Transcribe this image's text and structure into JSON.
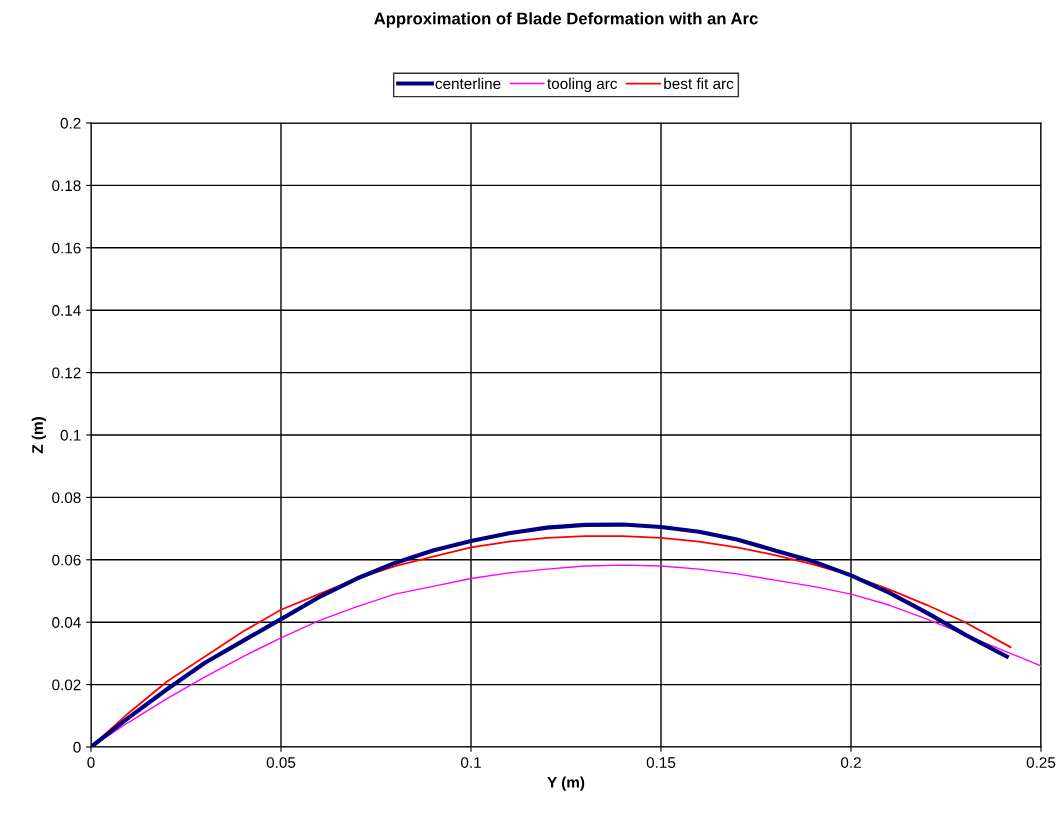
{
  "chart_data": {
    "type": "line",
    "title": "Approximation of Blade Deformation with an Arc",
    "xlabel": "Y (m)",
    "ylabel": "Z (m)",
    "xlim": [
      0,
      0.25
    ],
    "xticks": [
      0,
      0.05,
      0.1,
      0.15,
      0.2,
      0.25
    ],
    "ylim": [
      0,
      0.2
    ],
    "yticks": [
      0,
      0.02,
      0.04,
      0.06,
      0.08,
      0.1,
      0.12,
      0.14,
      0.16,
      0.18,
      0.2
    ],
    "grid": true,
    "legend": "top",
    "marker": "none",
    "line_style": "solid",
    "series": [
      {
        "name": "centerline",
        "color": "#000080",
        "x": [
          0,
          0.01,
          0.02,
          0.03,
          0.04,
          0.05,
          0.06,
          0.07,
          0.08,
          0.09,
          0.1,
          0.11,
          0.12,
          0.13,
          0.14,
          0.15,
          0.16,
          0.17,
          0.18,
          0.19,
          0.2,
          0.21,
          0.22,
          0.23,
          0.241
        ],
        "values": [
          0,
          0.0095,
          0.0185,
          0.027,
          0.034,
          0.041,
          0.048,
          0.054,
          0.059,
          0.063,
          0.066,
          0.0685,
          0.0703,
          0.0712,
          0.0713,
          0.0705,
          0.069,
          0.0665,
          0.063,
          0.0595,
          0.055,
          0.0495,
          0.043,
          0.036,
          0.029
        ]
      },
      {
        "name": "tooling arc",
        "color": "#ff00ff",
        "x": [
          0,
          0.01,
          0.02,
          0.03,
          0.04,
          0.05,
          0.06,
          0.07,
          0.08,
          0.09,
          0.1,
          0.11,
          0.12,
          0.13,
          0.14,
          0.15,
          0.16,
          0.17,
          0.18,
          0.19,
          0.2,
          0.21,
          0.22,
          0.23,
          0.24,
          0.25
        ],
        "values": [
          0,
          0.008,
          0.0155,
          0.0225,
          0.029,
          0.035,
          0.0405,
          0.045,
          0.049,
          0.0515,
          0.054,
          0.0558,
          0.057,
          0.058,
          0.0583,
          0.058,
          0.057,
          0.0555,
          0.0535,
          0.0515,
          0.049,
          0.0455,
          0.041,
          0.036,
          0.031,
          0.026
        ]
      },
      {
        "name": "best fit arc",
        "color": "#ff0000",
        "x": [
          0,
          0.01,
          0.02,
          0.03,
          0.04,
          0.05,
          0.06,
          0.07,
          0.08,
          0.09,
          0.1,
          0.11,
          0.12,
          0.13,
          0.14,
          0.15,
          0.16,
          0.17,
          0.18,
          0.19,
          0.2,
          0.21,
          0.22,
          0.23,
          0.242
        ],
        "values": [
          0,
          0.011,
          0.021,
          0.029,
          0.037,
          0.044,
          0.049,
          0.054,
          0.058,
          0.061,
          0.064,
          0.0658,
          0.067,
          0.0676,
          0.0676,
          0.067,
          0.0658,
          0.064,
          0.0615,
          0.0585,
          0.055,
          0.0505,
          0.0455,
          0.04,
          0.032
        ]
      }
    ]
  }
}
